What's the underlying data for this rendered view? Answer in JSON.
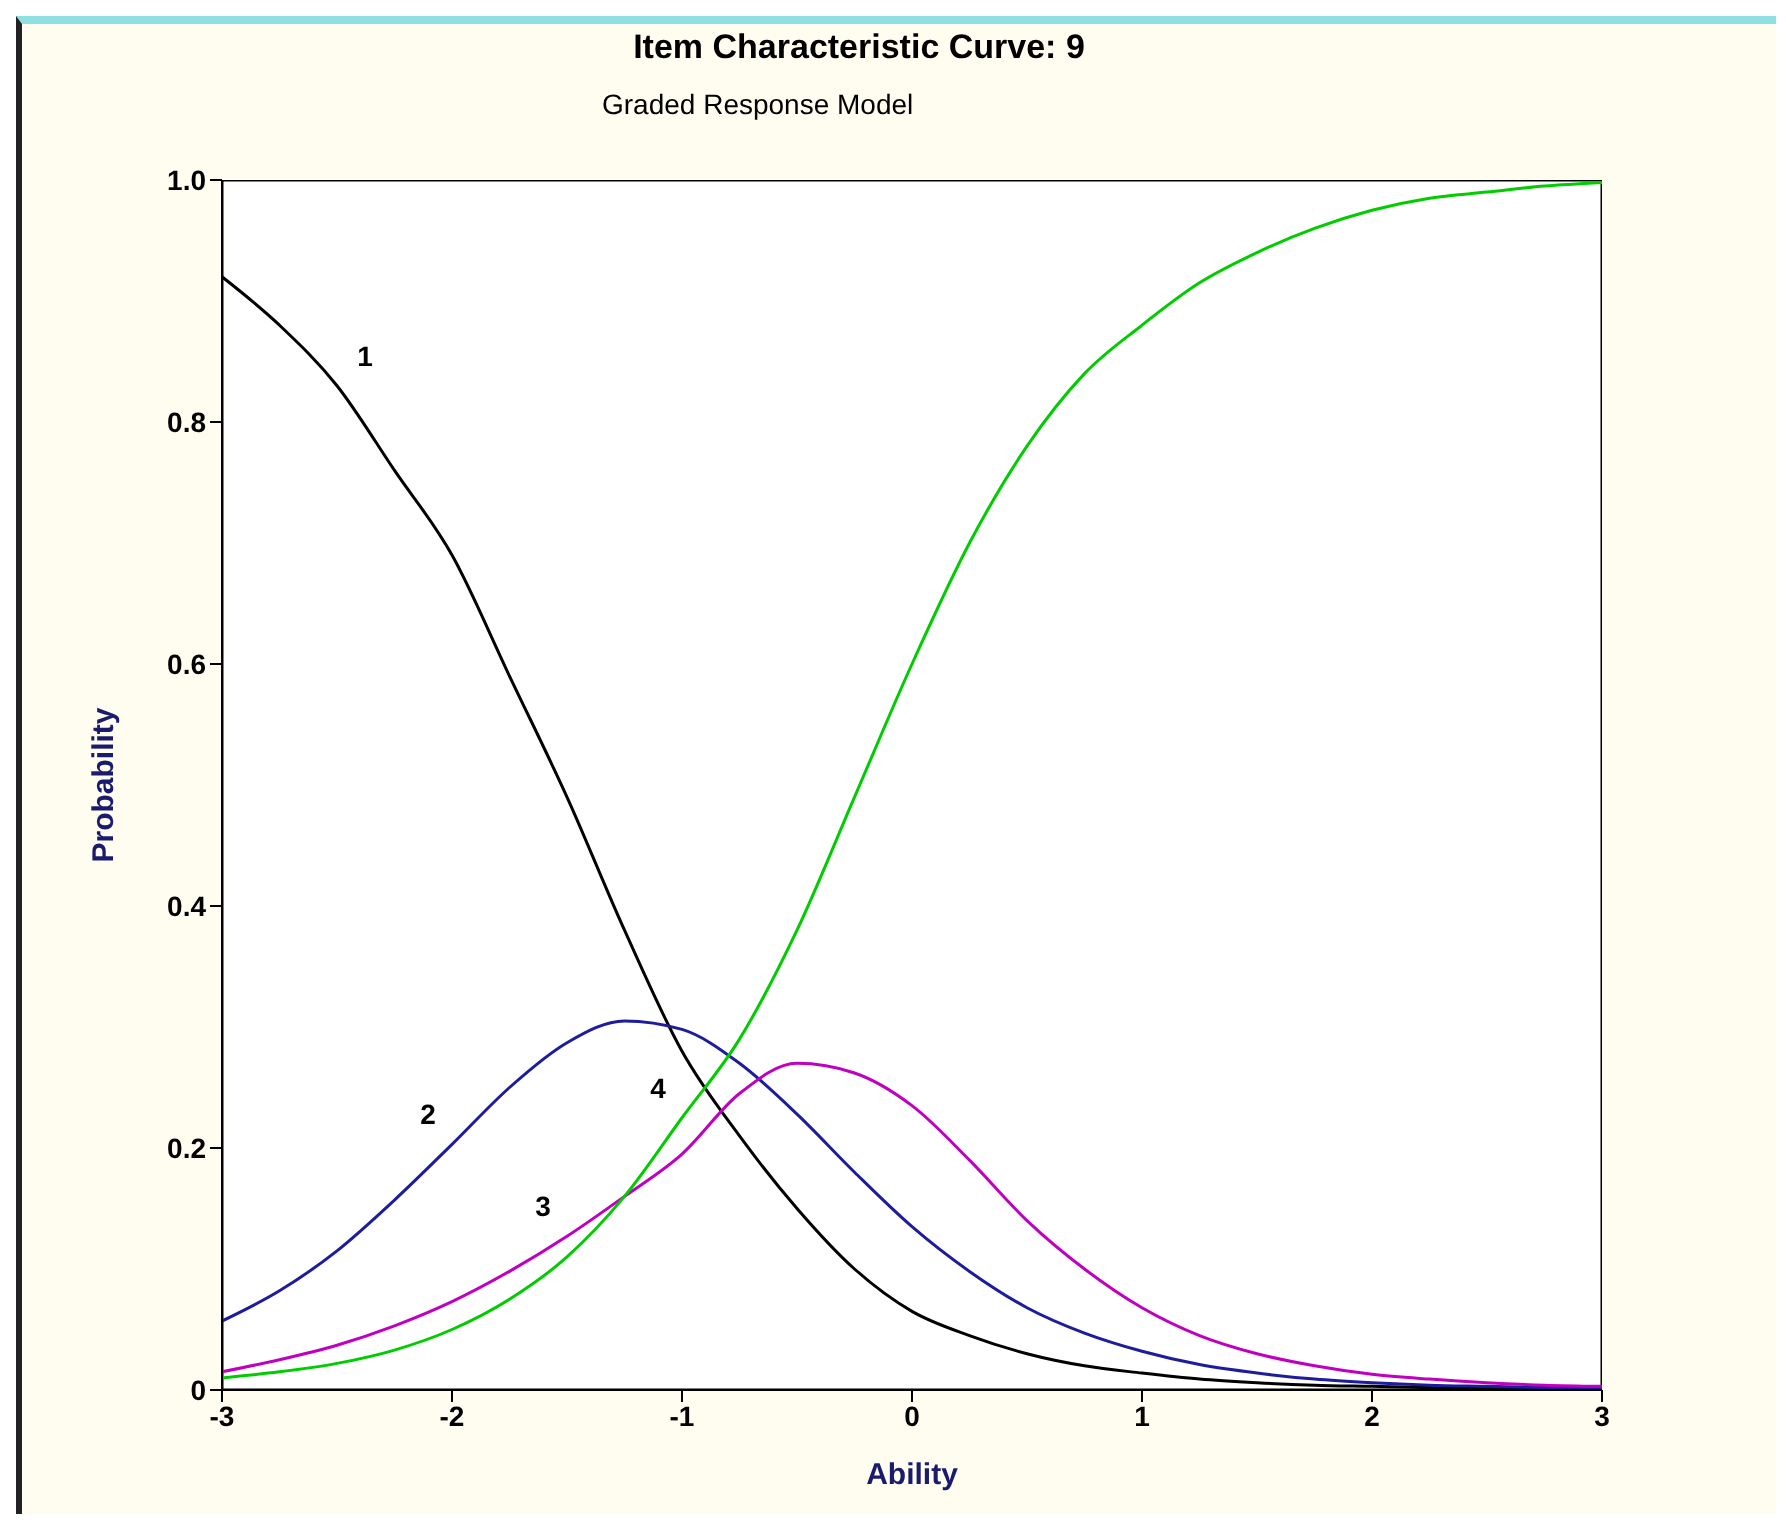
{
  "chart_data": {
    "type": "line",
    "title": "Item Characteristic Curve: 9",
    "subtitle": "Graded Response Model",
    "xlabel": "Ability",
    "ylabel": "Probability",
    "x": [
      -3,
      -2.75,
      -2.5,
      -2.25,
      -2,
      -1.75,
      -1.5,
      -1.25,
      -1,
      -0.75,
      -0.5,
      -0.25,
      0,
      0.25,
      0.5,
      0.75,
      1,
      1.25,
      1.5,
      1.75,
      2,
      2.25,
      2.5,
      2.75,
      3
    ],
    "series": [
      {
        "name": "1",
        "color": "#000000",
        "values": [
          0.92,
          0.88,
          0.83,
          0.76,
          0.69,
          0.59,
          0.49,
          0.38,
          0.28,
          0.21,
          0.15,
          0.1,
          0.065,
          0.045,
          0.03,
          0.02,
          0.014,
          0.009,
          0.006,
          0.004,
          0.003,
          0.002,
          0.002,
          0.001,
          0.001
        ]
      },
      {
        "name": "2",
        "color": "#1c1c9c",
        "values": [
          0.057,
          0.082,
          0.115,
          0.157,
          0.203,
          0.25,
          0.287,
          0.305,
          0.298,
          0.27,
          0.228,
          0.18,
          0.135,
          0.098,
          0.068,
          0.047,
          0.032,
          0.021,
          0.014,
          0.009,
          0.006,
          0.004,
          0.003,
          0.002,
          0.001
        ]
      },
      {
        "name": "3",
        "color": "#c000c0",
        "values": [
          0.015,
          0.025,
          0.037,
          0.053,
          0.073,
          0.098,
          0.127,
          0.16,
          0.195,
          0.245,
          0.27,
          0.262,
          0.235,
          0.19,
          0.14,
          0.1,
          0.068,
          0.045,
          0.03,
          0.02,
          0.013,
          0.009,
          0.006,
          0.004,
          0.003
        ]
      },
      {
        "name": "4",
        "color": "#00cc00",
        "values": [
          0.01,
          0.015,
          0.022,
          0.033,
          0.05,
          0.075,
          0.11,
          0.16,
          0.225,
          0.29,
          0.38,
          0.49,
          0.6,
          0.7,
          0.78,
          0.84,
          0.88,
          0.915,
          0.94,
          0.96,
          0.975,
          0.985,
          0.99,
          0.995,
          0.998
        ]
      }
    ],
    "xlim": [
      -3,
      3
    ],
    "xticks": [
      -3,
      -2,
      -1,
      0,
      1,
      2,
      3
    ],
    "ylim": [
      0,
      1
    ],
    "yticks": [
      0,
      0.2,
      0.4,
      0.6,
      0.8,
      {
        "value": 1,
        "label": "1.0"
      }
    ],
    "marker": "none",
    "line_style": "solid"
  }
}
